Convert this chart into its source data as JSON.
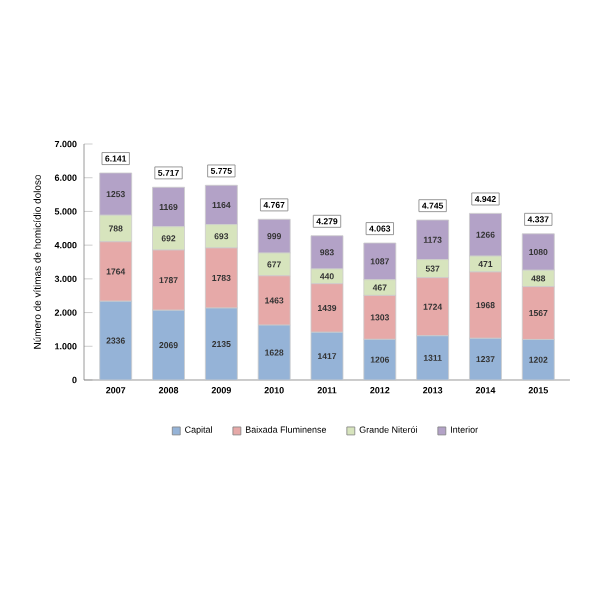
{
  "chart_data": {
    "type": "bar",
    "stacked": true,
    "ylabel": "Número de vítimas de homicídio doloso",
    "categories": [
      "2007",
      "2008",
      "2009",
      "2010",
      "2011",
      "2012",
      "2013",
      "2014",
      "2015"
    ],
    "series": [
      {
        "name": "Capital",
        "color": "#95b3d7",
        "values": [
          2336,
          2069,
          2135,
          1628,
          1417,
          1206,
          1311,
          1237,
          1202
        ]
      },
      {
        "name": "Baixada Fluminense",
        "color": "#e6a9a8",
        "values": [
          1764,
          1787,
          1783,
          1463,
          1439,
          1303,
          1724,
          1968,
          1567
        ]
      },
      {
        "name": "Grande Niterói",
        "color": "#d7e4bd",
        "values": [
          788,
          692,
          693,
          677,
          440,
          467,
          537,
          471,
          488
        ]
      },
      {
        "name": "Interior",
        "color": "#b3a2c7",
        "values": [
          1253,
          1169,
          1164,
          999,
          983,
          1087,
          1173,
          1266,
          1080
        ]
      }
    ],
    "totals": [
      "6.141",
      "5.717",
      "5.775",
      "4.767",
      "4.279",
      "4.063",
      "4.745",
      "4.942",
      "4.337"
    ],
    "data_labels": true,
    "ylim": [
      0,
      7000
    ],
    "yticks": [
      0,
      {
        "value": 1000,
        "label": "1.000"
      },
      {
        "value": 2000,
        "label": "2.000"
      },
      {
        "value": 3000,
        "label": "3.000"
      },
      {
        "value": 4000,
        "label": "4.000"
      },
      {
        "value": 5000,
        "label": "5.000"
      },
      {
        "value": 6000,
        "label": "6.000"
      },
      {
        "value": 7000,
        "label": "7.000"
      }
    ],
    "legend": "bottom",
    "grid": false
  }
}
